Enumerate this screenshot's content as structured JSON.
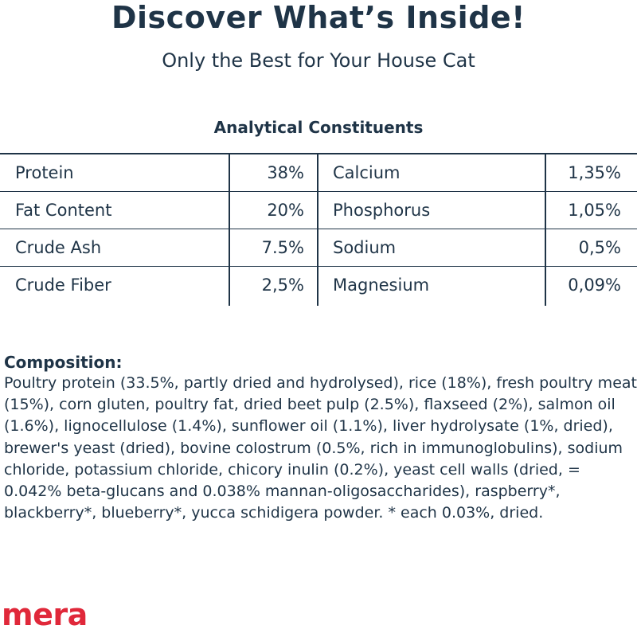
{
  "header": {
    "title": "Discover What’s Inside!",
    "subtitle": "Only the Best for Your House Cat"
  },
  "constituents": {
    "title": "Analytical Constituents",
    "rows": [
      {
        "left_name": "Protein",
        "left_value": "38%",
        "right_name": "Calcium",
        "right_value": "1,35%"
      },
      {
        "left_name": "Fat Content",
        "left_value": "20%",
        "right_name": "Phosphorus",
        "right_value": "1,05%"
      },
      {
        "left_name": "Crude Ash",
        "left_value": "7.5%",
        "right_name": "Sodium",
        "right_value": "0,5%"
      },
      {
        "left_name": "Crude Fiber",
        "left_value": "2,5%",
        "right_name": "Magnesium",
        "right_value": "0,09%"
      }
    ]
  },
  "composition": {
    "label": "Composition:",
    "text": "Poultry protein (33.5%, partly dried and hydrolysed), rice (18%), fresh poultry meat (15%), corn gluten, poultry fat, dried beet pulp (2.5%), flaxseed (2%), salmon oil (1.6%), lignocellulose (1.4%), sunflower oil (1.1%), liver hydrolysate (1%, dried), brewer's yeast (dried), bovine colostrum (0.5%, rich in immunoglobulins), sodium chloride, potassium chloride, chicory inulin (0.2%), yeast cell walls (dried, = 0.042% beta-glucans and 0.038% mannan-oligosaccharides), raspberry*, blackberry*, blueberry*, yucca schidigera powder. * each 0.03%, dried."
  },
  "brand": {
    "logo_text": "mera",
    "color": "#e0283a"
  },
  "colors": {
    "text": "#1f3447"
  }
}
